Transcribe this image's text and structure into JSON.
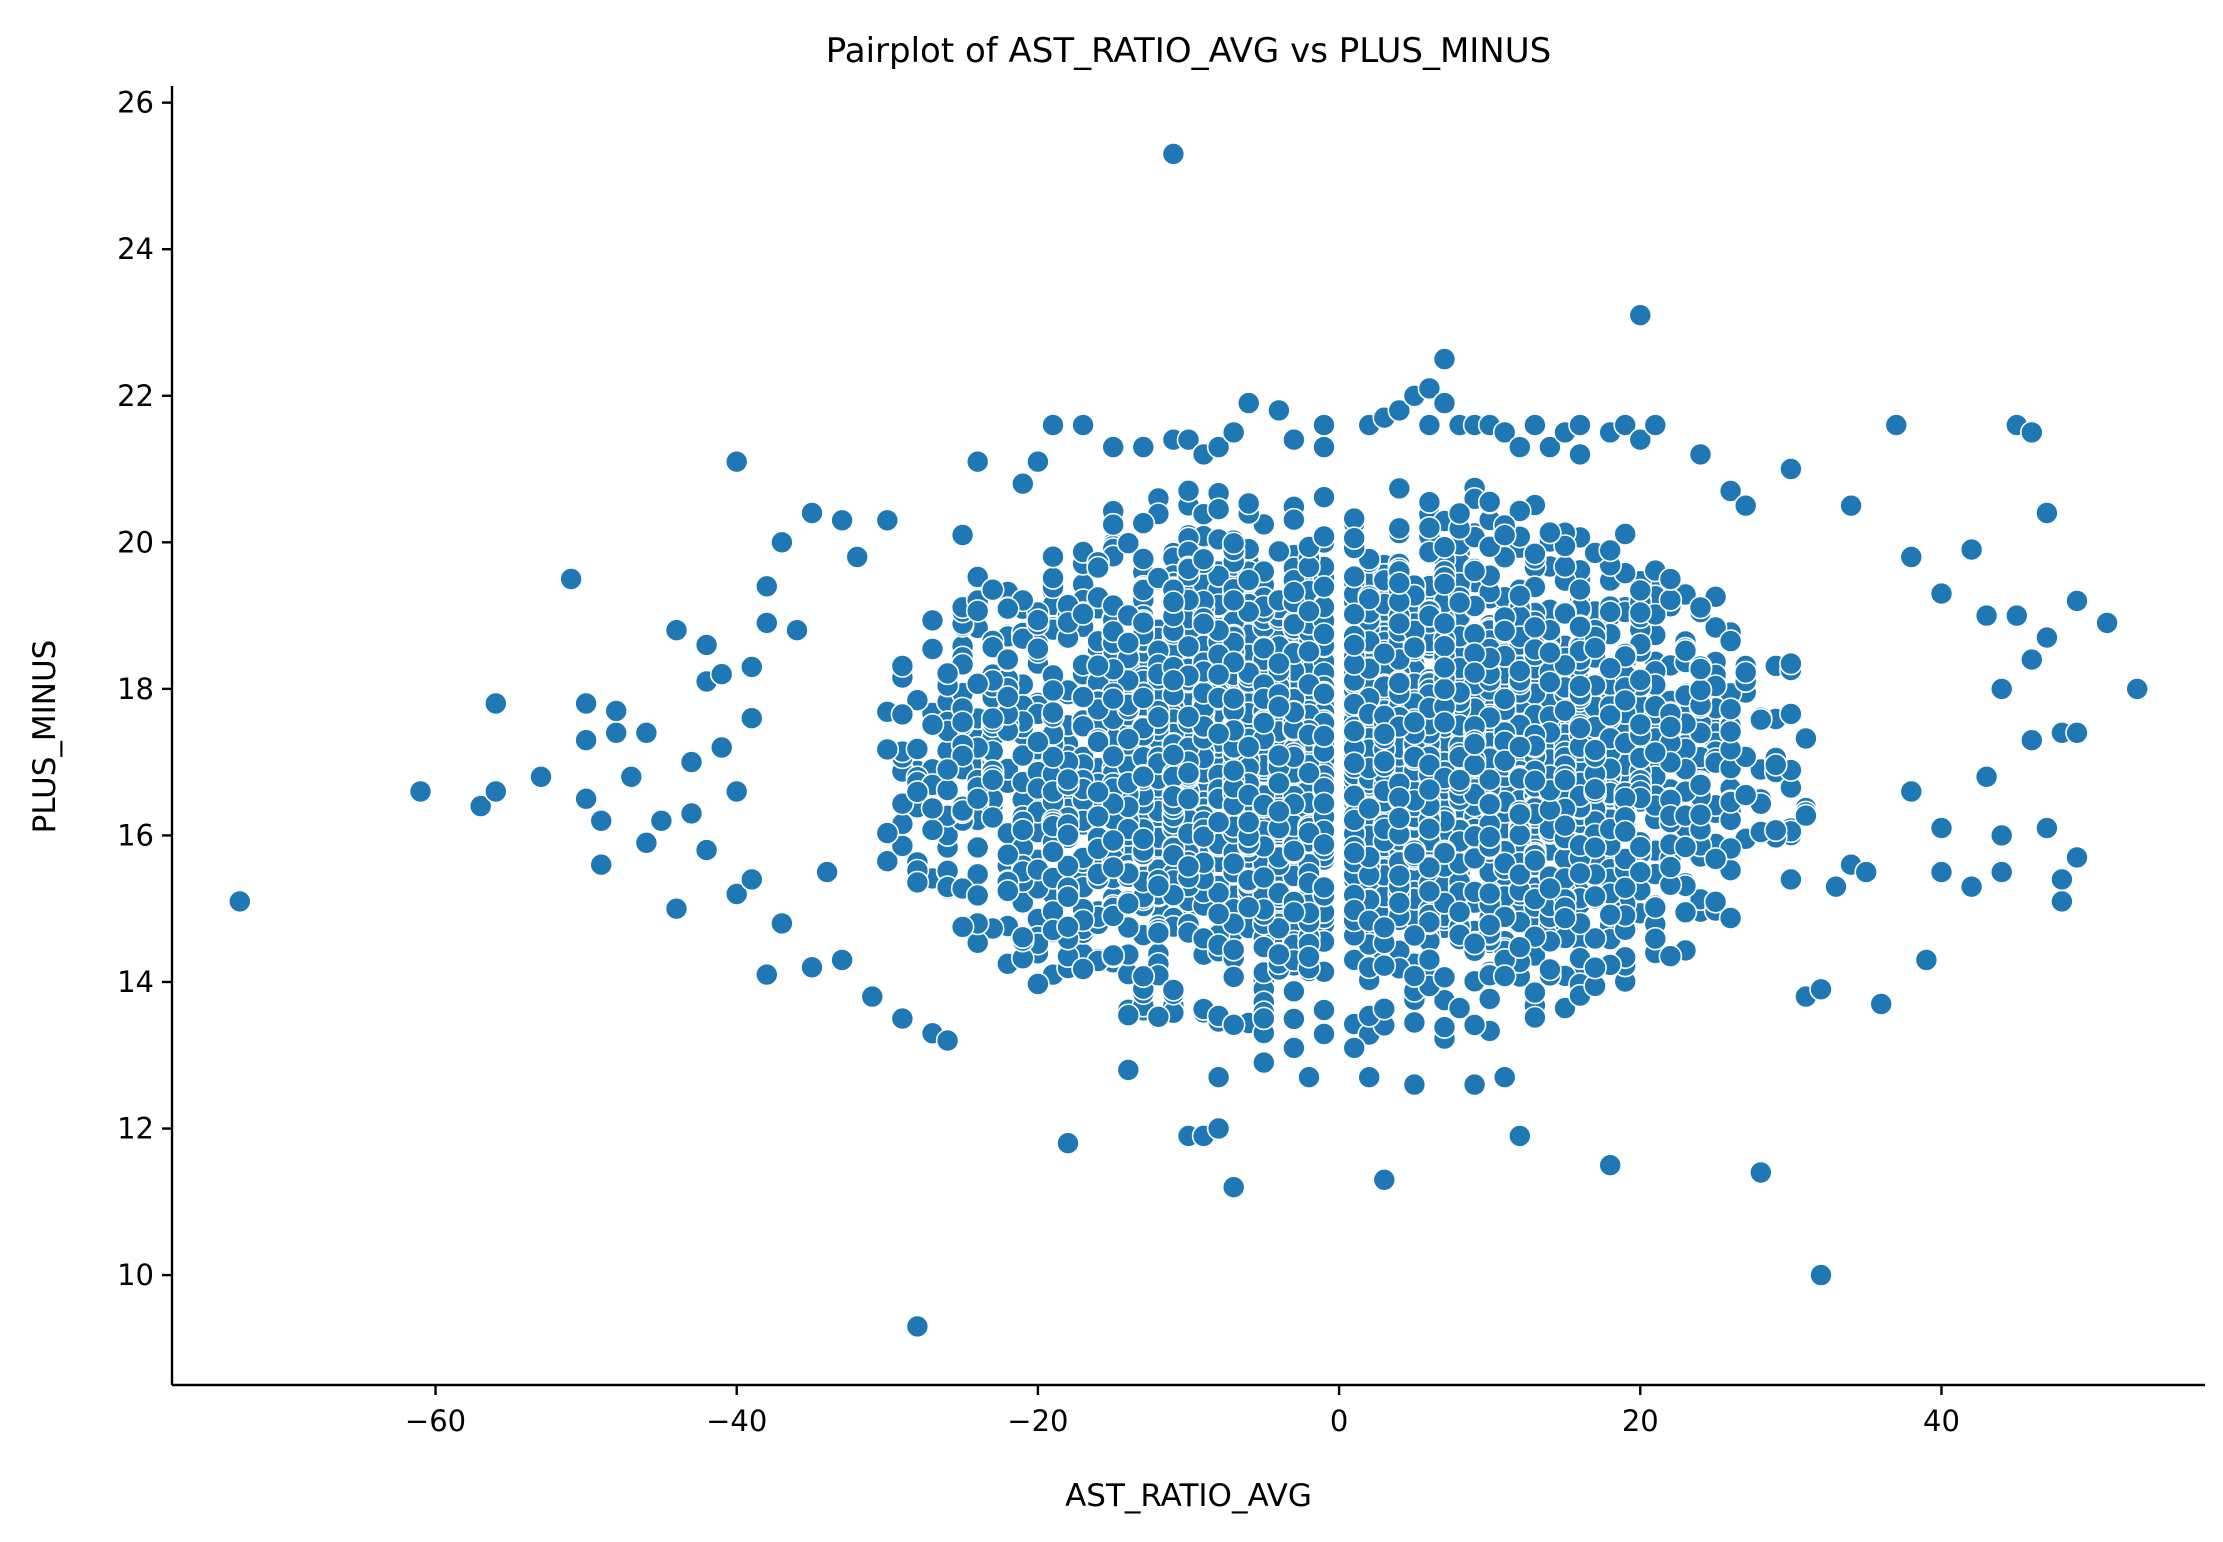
{
  "chart_data": {
    "type": "scatter",
    "title": "Pairplot of AST_RATIO_AVG vs PLUS_MINUS",
    "xlabel": "AST_RATIO_AVG",
    "ylabel": "PLUS_MINUS",
    "xlim": [
      -77.5,
      57.5
    ],
    "ylim": [
      8.5,
      26.2
    ],
    "xticks": [
      -60,
      -40,
      -20,
      0,
      20,
      40
    ],
    "xtick_labels": [
      "−60",
      "−40",
      "−20",
      "0",
      "20",
      "40"
    ],
    "yticks": [
      10,
      12,
      14,
      16,
      18,
      20,
      22,
      24,
      26
    ],
    "ytick_labels": [
      "10",
      "12",
      "14",
      "16",
      "18",
      "20",
      "22",
      "24",
      "26"
    ],
    "grid": false,
    "legend": "none",
    "color": "#1f77b4",
    "dense_cluster": {
      "note_points": "approximate dense core of several thousand points",
      "x_mean": 0,
      "x_sd": 14,
      "x_range": [
        -30,
        32
      ],
      "y_mean": 17,
      "y_sd": 1.6,
      "y_range": [
        13.2,
        20.8
      ],
      "gap_near_x": 0
    },
    "points": [
      [
        -73,
        15.1
      ],
      [
        -61,
        16.6
      ],
      [
        -57,
        16.4
      ],
      [
        -56,
        16.6
      ],
      [
        -56,
        17.8
      ],
      [
        -53,
        16.8
      ],
      [
        -51,
        19.5
      ],
      [
        -50,
        17.8
      ],
      [
        -50,
        17.3
      ],
      [
        -50,
        16.5
      ],
      [
        -49,
        15.6
      ],
      [
        -49,
        16.2
      ],
      [
        -48,
        17.7
      ],
      [
        -48,
        17.4
      ],
      [
        -47,
        16.8
      ],
      [
        -46,
        17.4
      ],
      [
        -46,
        15.9
      ],
      [
        -45,
        16.2
      ],
      [
        -44,
        18.8
      ],
      [
        -44,
        15.0
      ],
      [
        -43,
        17.0
      ],
      [
        -43,
        16.3
      ],
      [
        -42,
        18.6
      ],
      [
        -42,
        18.1
      ],
      [
        -42,
        15.8
      ],
      [
        -41,
        18.2
      ],
      [
        -41,
        17.2
      ],
      [
        -40,
        21.1
      ],
      [
        -40,
        16.6
      ],
      [
        -40,
        15.2
      ],
      [
        -39,
        18.3
      ],
      [
        -39,
        17.6
      ],
      [
        -39,
        15.4
      ],
      [
        -38,
        19.4
      ],
      [
        -38,
        18.9
      ],
      [
        -38,
        14.1
      ],
      [
        -37,
        20.0
      ],
      [
        -37,
        14.8
      ],
      [
        -36,
        18.8
      ],
      [
        -35,
        20.4
      ],
      [
        -35,
        14.2
      ],
      [
        -34,
        15.5
      ],
      [
        -33,
        20.3
      ],
      [
        -33,
        14.3
      ],
      [
        -32,
        19.8
      ],
      [
        -31,
        13.8
      ],
      [
        -30,
        20.3
      ],
      [
        -29,
        13.5
      ],
      [
        -28,
        9.3
      ],
      [
        -27,
        13.3
      ],
      [
        -26,
        13.2
      ],
      [
        -25,
        20.1
      ],
      [
        -24,
        21.1
      ],
      [
        -21,
        20.8
      ],
      [
        -20,
        21.1
      ],
      [
        -19,
        21.6
      ],
      [
        -17,
        21.6
      ],
      [
        -18,
        11.8
      ],
      [
        -15,
        21.3
      ],
      [
        -14,
        12.8
      ],
      [
        -13,
        21.3
      ],
      [
        -11,
        25.3
      ],
      [
        -11,
        21.4
      ],
      [
        -10,
        21.4
      ],
      [
        -10,
        11.9
      ],
      [
        -9,
        21.2
      ],
      [
        -9,
        11.9
      ],
      [
        -8,
        21.3
      ],
      [
        -8,
        12.0
      ],
      [
        -8,
        12.7
      ],
      [
        -7,
        21.5
      ],
      [
        -7,
        11.2
      ],
      [
        -6,
        21.9
      ],
      [
        -5,
        12.9
      ],
      [
        -4,
        21.8
      ],
      [
        -3,
        21.4
      ],
      [
        -3,
        13.1
      ],
      [
        -1,
        21.6
      ],
      [
        -1,
        21.3
      ],
      [
        -2,
        12.7
      ],
      [
        1,
        13.1
      ],
      [
        2,
        21.6
      ],
      [
        2,
        12.7
      ],
      [
        3,
        21.7
      ],
      [
        3,
        11.3
      ],
      [
        4,
        21.8
      ],
      [
        5,
        22.0
      ],
      [
        5,
        12.6
      ],
      [
        6,
        22.1
      ],
      [
        6,
        21.6
      ],
      [
        7,
        22.5
      ],
      [
        7,
        21.9
      ],
      [
        8,
        21.6
      ],
      [
        9,
        21.6
      ],
      [
        9,
        12.6
      ],
      [
        10,
        21.6
      ],
      [
        11,
        12.7
      ],
      [
        11,
        21.5
      ],
      [
        12,
        21.3
      ],
      [
        12,
        11.9
      ],
      [
        13,
        21.6
      ],
      [
        14,
        21.3
      ],
      [
        15,
        21.5
      ],
      [
        16,
        21.6
      ],
      [
        16,
        21.2
      ],
      [
        18,
        21.5
      ],
      [
        18,
        11.5
      ],
      [
        19,
        21.6
      ],
      [
        20,
        23.1
      ],
      [
        20,
        21.4
      ],
      [
        21,
        21.6
      ],
      [
        24,
        21.2
      ],
      [
        26,
        20.7
      ],
      [
        27,
        20.5
      ],
      [
        28,
        11.4
      ],
      [
        30,
        21.0
      ],
      [
        30,
        15.4
      ],
      [
        31,
        13.8
      ],
      [
        32,
        10.0
      ],
      [
        32,
        13.9
      ],
      [
        33,
        15.3
      ],
      [
        34,
        15.6
      ],
      [
        34,
        20.5
      ],
      [
        35,
        15.5
      ],
      [
        36,
        13.7
      ],
      [
        37,
        21.6
      ],
      [
        38,
        19.8
      ],
      [
        38,
        16.6
      ],
      [
        39,
        14.3
      ],
      [
        40,
        19.3
      ],
      [
        40,
        16.1
      ],
      [
        40,
        15.5
      ],
      [
        42,
        19.9
      ],
      [
        42,
        15.3
      ],
      [
        43,
        19.0
      ],
      [
        43,
        16.8
      ],
      [
        44,
        18.0
      ],
      [
        44,
        16.0
      ],
      [
        44,
        15.5
      ],
      [
        45,
        21.6
      ],
      [
        45,
        19.0
      ],
      [
        46,
        21.5
      ],
      [
        46,
        18.4
      ],
      [
        46,
        17.3
      ],
      [
        47,
        20.4
      ],
      [
        47,
        18.7
      ],
      [
        47,
        16.1
      ],
      [
        48,
        17.4
      ],
      [
        48,
        15.4
      ],
      [
        48,
        15.1
      ],
      [
        49,
        17.4
      ],
      [
        49,
        19.2
      ],
      [
        49,
        15.7
      ],
      [
        51,
        18.9
      ],
      [
        53,
        18.0
      ]
    ]
  }
}
